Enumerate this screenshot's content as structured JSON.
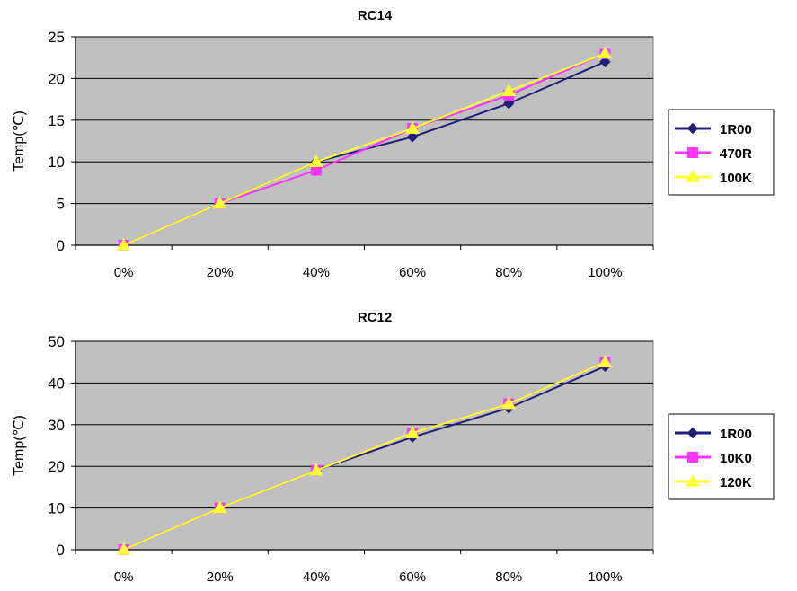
{
  "colors": {
    "plot_bg": "#c0c0c0",
    "series_1": "#1f1f7a",
    "series_2": "#ff33ff",
    "series_3": "#ffff33"
  },
  "chart_data": [
    {
      "type": "line",
      "title": "RC14",
      "xlabel": "",
      "ylabel": "Temp(℃)",
      "categories": [
        "0%",
        "20%",
        "40%",
        "60%",
        "80%",
        "100%"
      ],
      "ylim": [
        0,
        25
      ],
      "yticks": [
        0,
        5,
        10,
        15,
        20,
        25
      ],
      "grid": true,
      "legend_position": "right",
      "series": [
        {
          "name": "1R00",
          "marker": "diamond",
          "color": "#1f1f7a",
          "values": [
            0,
            5,
            10,
            13,
            17,
            22
          ]
        },
        {
          "name": "470R",
          "marker": "square",
          "color": "#ff33ff",
          "values": [
            0,
            5,
            9,
            14,
            18,
            23
          ]
        },
        {
          "name": "100K",
          "marker": "triangle",
          "color": "#ffff33",
          "values": [
            0,
            5,
            10,
            14,
            18.5,
            23
          ]
        }
      ]
    },
    {
      "type": "line",
      "title": "RC12",
      "xlabel": "",
      "ylabel": "Temp(℃)",
      "categories": [
        "0%",
        "20%",
        "40%",
        "60%",
        "80%",
        "100%"
      ],
      "ylim": [
        0,
        50
      ],
      "yticks": [
        0,
        10,
        20,
        30,
        40,
        50
      ],
      "grid": true,
      "legend_position": "right",
      "series": [
        {
          "name": "1R00",
          "marker": "diamond",
          "color": "#1f1f7a",
          "values": [
            0,
            10,
            19,
            27,
            34,
            44
          ]
        },
        {
          "name": "10K0",
          "marker": "square",
          "color": "#ff33ff",
          "values": [
            0,
            10,
            19,
            28,
            35,
            45
          ]
        },
        {
          "name": "120K",
          "marker": "triangle",
          "color": "#ffff33",
          "values": [
            0,
            10,
            19,
            28,
            35,
            45
          ]
        }
      ]
    }
  ]
}
